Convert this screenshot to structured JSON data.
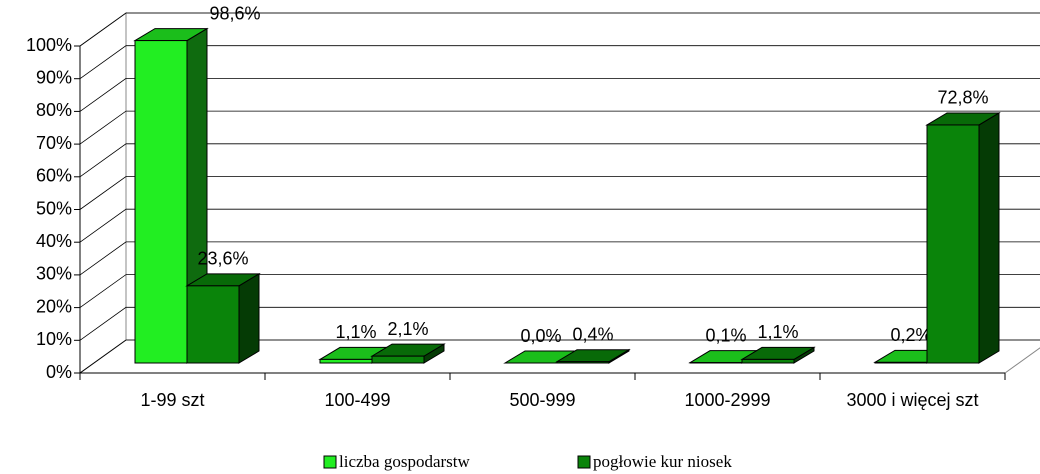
{
  "chart_data": {
    "type": "bar3d",
    "categories": [
      "1-99 szt",
      "100-499",
      "500-999",
      "1000-2999",
      "3000 i więcej szt"
    ],
    "series": [
      {
        "name": "liczba gospodarstw",
        "color": "#22ee22",
        "values": [
          98.6,
          1.1,
          0.0,
          0.1,
          0.2
        ],
        "value_labels": [
          "98,6%",
          "1,1%",
          "0,0%",
          "0,1%",
          "0,2%"
        ]
      },
      {
        "name": "pogłowie kur niosek",
        "color": "#0a840a",
        "values": [
          23.6,
          2.1,
          0.4,
          1.1,
          72.8
        ],
        "value_labels": [
          "23,6%",
          "2,1%",
          "0,4%",
          "1,1%",
          "72,8%"
        ]
      }
    ],
    "ylim": [
      0,
      100
    ],
    "yticks": [
      {
        "value": 0,
        "label": "0%"
      },
      {
        "value": 10,
        "label": "10%"
      },
      {
        "value": 20,
        "label": "20%"
      },
      {
        "value": 30,
        "label": "30%"
      },
      {
        "value": 40,
        "label": "40%"
      },
      {
        "value": 50,
        "label": "50%"
      },
      {
        "value": 60,
        "label": "60%"
      },
      {
        "value": 70,
        "label": "70%"
      },
      {
        "value": 80,
        "label": "80%"
      },
      {
        "value": 90,
        "label": "90%"
      },
      {
        "value": 100,
        "label": "100%"
      }
    ],
    "grid": true,
    "legend": "bottom"
  }
}
